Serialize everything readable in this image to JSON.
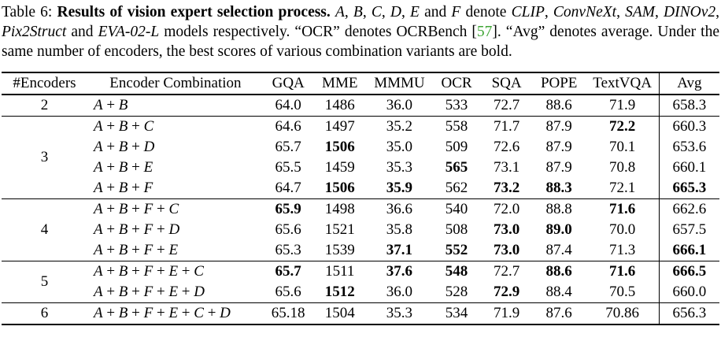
{
  "colors": {
    "citation_green": "#3fa535",
    "text": "#000000",
    "background": "#ffffff"
  },
  "caption": {
    "segments": [
      {
        "text": "Table 6: "
      },
      {
        "text": "Results of vision expert selection process. ",
        "bold": true
      },
      {
        "text": "A",
        "italic": true
      },
      {
        "text": ", "
      },
      {
        "text": "B",
        "italic": true
      },
      {
        "text": ", "
      },
      {
        "text": "C",
        "italic": true
      },
      {
        "text": ", "
      },
      {
        "text": "D",
        "italic": true
      },
      {
        "text": ", "
      },
      {
        "text": "E",
        "italic": true
      },
      {
        "text": " and "
      },
      {
        "text": "F",
        "italic": true
      },
      {
        "text": " denote "
      },
      {
        "text": "CLIP",
        "italic": true
      },
      {
        "text": ", "
      },
      {
        "text": "ConvNeXt",
        "italic": true
      },
      {
        "text": ", "
      },
      {
        "text": "SAM",
        "italic": true
      },
      {
        "text": ", "
      },
      {
        "text": "DINOv2",
        "italic": true
      },
      {
        "text": ", "
      },
      {
        "text": "Pix2Struct",
        "italic": true
      },
      {
        "text": " and "
      },
      {
        "text": "EVA-02-L",
        "italic": true
      },
      {
        "text": " models respectively. “OCR” denotes OCRBench ["
      },
      {
        "text": "57",
        "color": "citation"
      },
      {
        "text": "]. “Avg” denotes average. Under the same number of encoders, the best scores of various combination variants are bold."
      }
    ]
  },
  "table": {
    "columns": [
      "#Encoders",
      "Encoder Combination",
      "GQA",
      "MME",
      "MMMU",
      "OCR",
      "SQA",
      "POPE",
      "TextVQA",
      "Avg"
    ],
    "groups": [
      {
        "encoders": "2",
        "rows": [
          {
            "combination": "A + B",
            "cells": [
              {
                "v": "64.0"
              },
              {
                "v": "1486"
              },
              {
                "v": "36.0"
              },
              {
                "v": "533"
              },
              {
                "v": "72.7"
              },
              {
                "v": "88.6"
              },
              {
                "v": "71.9"
              },
              {
                "v": "658.3"
              }
            ]
          }
        ]
      },
      {
        "encoders": "3",
        "rows": [
          {
            "combination": "A + B + C",
            "cells": [
              {
                "v": "64.6"
              },
              {
                "v": "1497"
              },
              {
                "v": "35.2"
              },
              {
                "v": "558"
              },
              {
                "v": "71.7"
              },
              {
                "v": "87.9"
              },
              {
                "v": "72.2",
                "b": true
              },
              {
                "v": "660.3"
              }
            ]
          },
          {
            "combination": "A + B + D",
            "cells": [
              {
                "v": "65.7"
              },
              {
                "v": "1506",
                "b": true
              },
              {
                "v": "35.0"
              },
              {
                "v": "509"
              },
              {
                "v": "72.6"
              },
              {
                "v": "87.9"
              },
              {
                "v": "70.1"
              },
              {
                "v": "653.6"
              }
            ]
          },
          {
            "combination": "A + B + E",
            "cells": [
              {
                "v": "65.5"
              },
              {
                "v": "1459"
              },
              {
                "v": "35.3"
              },
              {
                "v": "565",
                "b": true
              },
              {
                "v": "73.1"
              },
              {
                "v": "87.9"
              },
              {
                "v": "70.8"
              },
              {
                "v": "660.1"
              }
            ]
          },
          {
            "combination": "A + B + F",
            "cells": [
              {
                "v": "64.7"
              },
              {
                "v": "1506",
                "b": true
              },
              {
                "v": "35.9",
                "b": true
              },
              {
                "v": "562"
              },
              {
                "v": "73.2",
                "b": true
              },
              {
                "v": "88.3",
                "b": true
              },
              {
                "v": "72.1"
              },
              {
                "v": "665.3",
                "b": true
              }
            ]
          }
        ]
      },
      {
        "encoders": "4",
        "rows": [
          {
            "combination": "A + B + F + C",
            "cells": [
              {
                "v": "65.9",
                "b": true
              },
              {
                "v": "1498"
              },
              {
                "v": "36.6"
              },
              {
                "v": "540"
              },
              {
                "v": "72.0"
              },
              {
                "v": "88.8"
              },
              {
                "v": "71.6",
                "b": true
              },
              {
                "v": "662.6"
              }
            ]
          },
          {
            "combination": "A + B + F + D",
            "cells": [
              {
                "v": "65.6"
              },
              {
                "v": "1521"
              },
              {
                "v": "35.8"
              },
              {
                "v": "508"
              },
              {
                "v": "73.0",
                "b": true
              },
              {
                "v": "89.0",
                "b": true
              },
              {
                "v": "70.0"
              },
              {
                "v": "657.5"
              }
            ]
          },
          {
            "combination": "A + B + F + E",
            "cells": [
              {
                "v": "65.3"
              },
              {
                "v": "1539"
              },
              {
                "v": "37.1",
                "b": true
              },
              {
                "v": "552",
                "b": true
              },
              {
                "v": "73.0",
                "b": true
              },
              {
                "v": "87.4"
              },
              {
                "v": "71.3"
              },
              {
                "v": "666.1",
                "b": true
              }
            ]
          }
        ]
      },
      {
        "encoders": "5",
        "rows": [
          {
            "combination": "A + B + F + E + C",
            "cells": [
              {
                "v": "65.7",
                "b": true
              },
              {
                "v": "1511"
              },
              {
                "v": "37.6",
                "b": true
              },
              {
                "v": "548",
                "b": true
              },
              {
                "v": "72.7"
              },
              {
                "v": "88.6",
                "b": true
              },
              {
                "v": "71.6",
                "b": true
              },
              {
                "v": "666.5",
                "b": true
              }
            ]
          },
          {
            "combination": "A + B + F + E + D",
            "cells": [
              {
                "v": "65.6"
              },
              {
                "v": "1512",
                "b": true
              },
              {
                "v": "36.0"
              },
              {
                "v": "528"
              },
              {
                "v": "72.9",
                "b": true
              },
              {
                "v": "88.4"
              },
              {
                "v": "70.5"
              },
              {
                "v": "660.0"
              }
            ]
          }
        ]
      },
      {
        "encoders": "6",
        "rows": [
          {
            "combination": "A + B + F + E + C + D",
            "cells": [
              {
                "v": "65.18"
              },
              {
                "v": "1504"
              },
              {
                "v": "35.3"
              },
              {
                "v": "534"
              },
              {
                "v": "71.9"
              },
              {
                "v": "87.6"
              },
              {
                "v": "70.86"
              },
              {
                "v": "656.3"
              }
            ]
          }
        ]
      }
    ]
  }
}
